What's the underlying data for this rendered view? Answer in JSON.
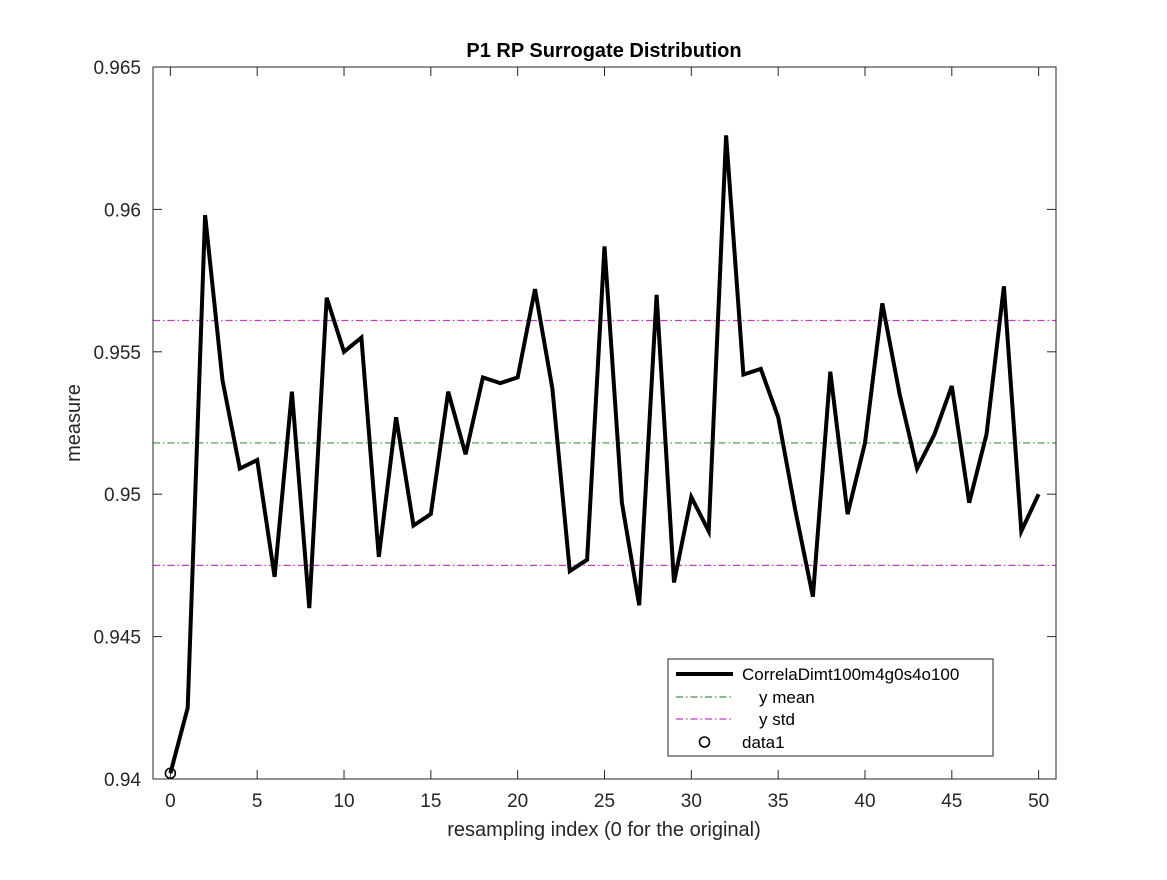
{
  "chart_data": {
    "type": "line",
    "title": "P1 RP Surrogate Distribution",
    "xlabel": "resampling index (0 for the original)",
    "ylabel": "measure",
    "xlim": [
      -1,
      51
    ],
    "ylim": [
      0.94,
      0.965
    ],
    "x_ticks": [
      0,
      5,
      10,
      15,
      20,
      25,
      30,
      35,
      40,
      45,
      50
    ],
    "x_tick_labels": [
      "0",
      "5",
      "10",
      "15",
      "20",
      "25",
      "30",
      "35",
      "40",
      "45",
      "50"
    ],
    "y_ticks": [
      0.94,
      0.945,
      0.95,
      0.955,
      0.96,
      0.965
    ],
    "y_tick_labels": [
      "0.94",
      "0.945",
      "0.95",
      "0.955",
      "0.96",
      "0.965"
    ],
    "grid": false,
    "legend_position": "bottom-right",
    "series": [
      {
        "name": "CorrelaDimt100m4g0s4o100",
        "style": "solid",
        "color": "#000000",
        "x": [
          0,
          1,
          2,
          3,
          4,
          5,
          6,
          7,
          8,
          9,
          10,
          11,
          12,
          13,
          14,
          15,
          16,
          17,
          18,
          19,
          20,
          21,
          22,
          23,
          24,
          25,
          26,
          27,
          28,
          29,
          30,
          31,
          32,
          33,
          34,
          35,
          36,
          37,
          38,
          39,
          40,
          41,
          42,
          43,
          44,
          45,
          46,
          47,
          48,
          49,
          50
        ],
        "y": [
          0.9402,
          0.9425,
          0.9598,
          0.954,
          0.9509,
          0.9512,
          0.9471,
          0.9536,
          0.946,
          0.9569,
          0.955,
          0.9555,
          0.9478,
          0.9527,
          0.9489,
          0.9493,
          0.9536,
          0.9514,
          0.9541,
          0.9539,
          0.9541,
          0.9572,
          0.9537,
          0.9473,
          0.9477,
          0.9587,
          0.9497,
          0.9461,
          0.957,
          0.9469,
          0.9499,
          0.9487,
          0.9626,
          0.9542,
          0.9544,
          0.9527,
          0.9494,
          0.9464,
          0.9543,
          0.9493,
          0.9518,
          0.9567,
          0.9535,
          0.9509,
          0.9521,
          0.9538,
          0.9497,
          0.9521,
          0.9573,
          0.9487,
          0.95
        ]
      },
      {
        "name": "y mean",
        "style": "dashdot",
        "color": "#3a9a3a",
        "y": 0.9518
      },
      {
        "name": "y std",
        "style": "dashdot",
        "color": "#c43bc4",
        "y": [
          0.9475,
          0.9561
        ]
      },
      {
        "name": "data1",
        "style": "marker",
        "marker": "circle",
        "color": "#000000",
        "x": [
          0
        ],
        "y": [
          0.9402
        ]
      }
    ]
  }
}
